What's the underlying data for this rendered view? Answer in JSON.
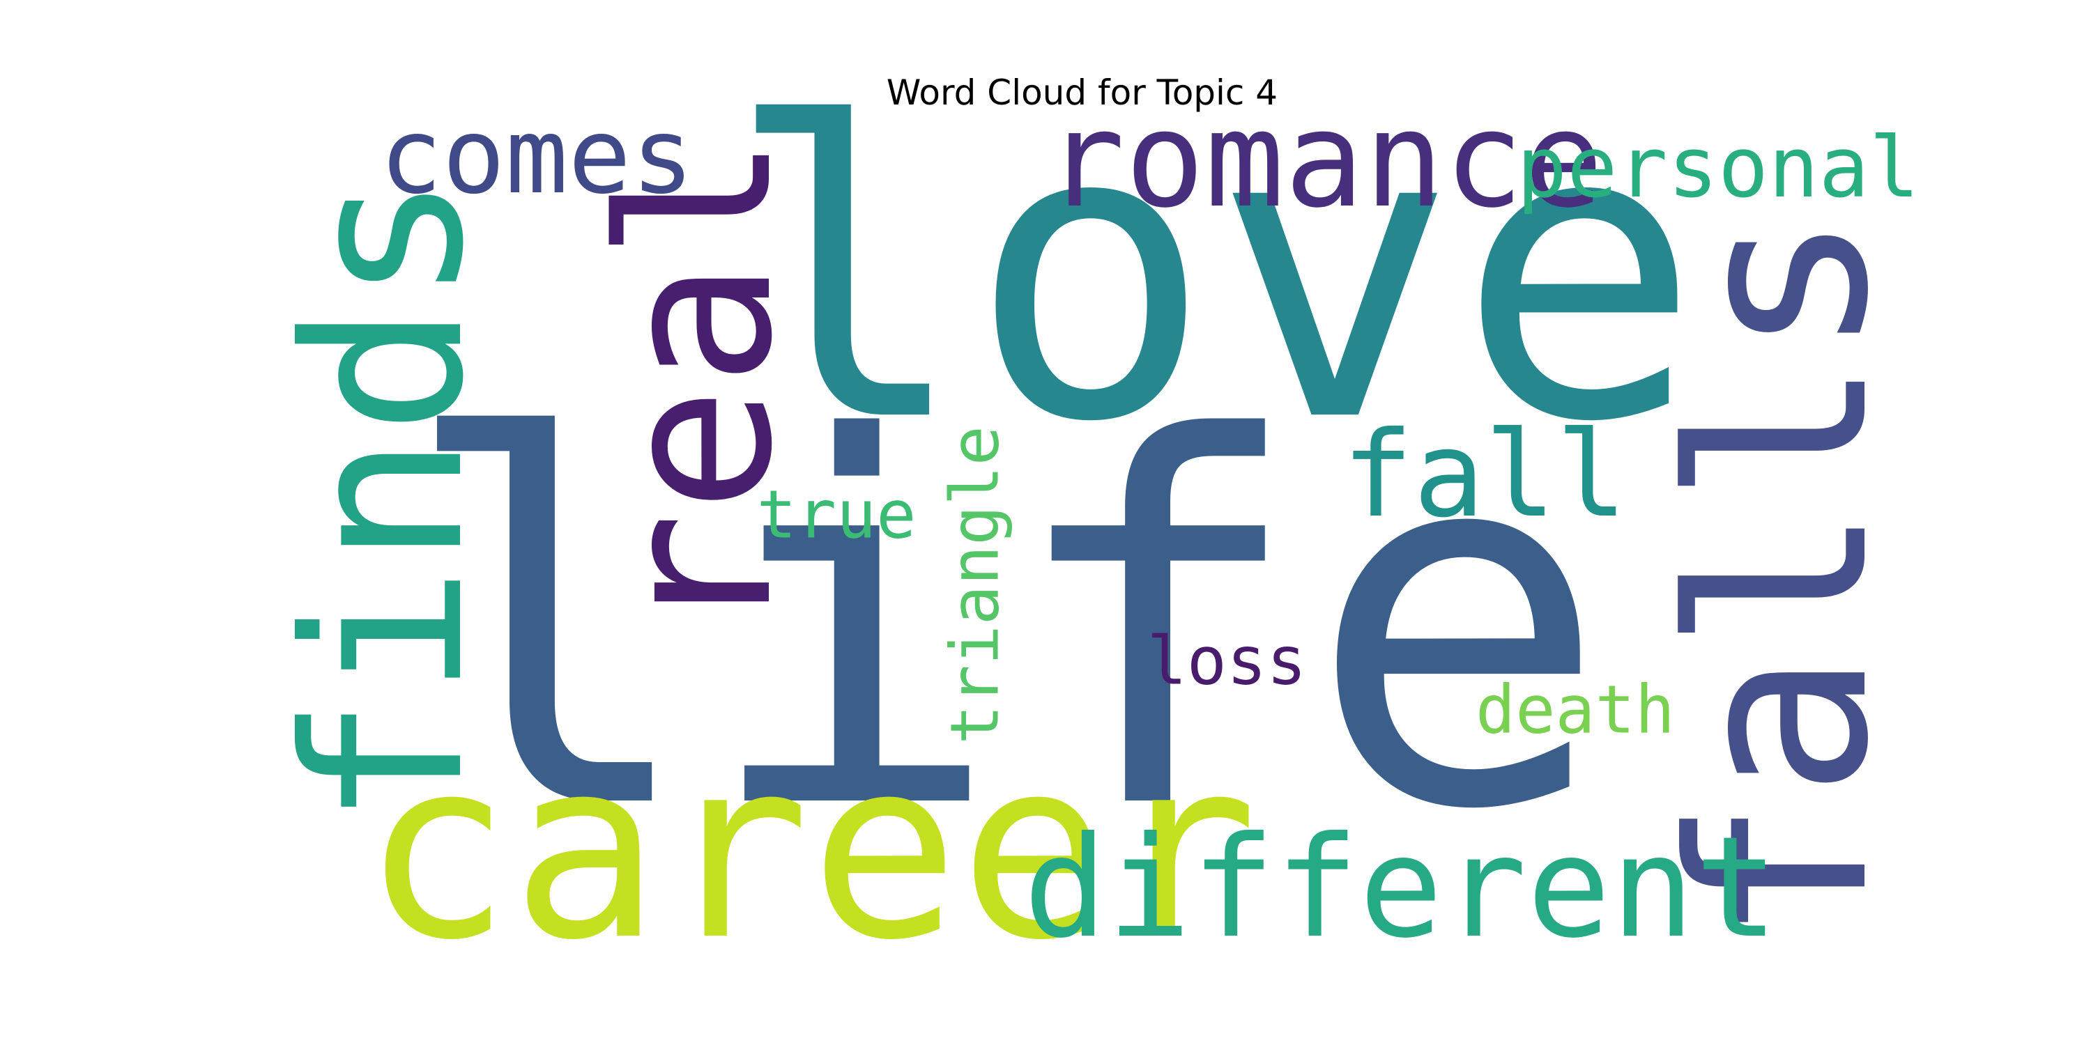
{
  "title": "Word Cloud for Topic 4",
  "words": [
    {
      "text": "life",
      "color": "#3b5f8a",
      "rotated": false
    },
    {
      "text": "love",
      "color": "#26888e",
      "rotated": false
    },
    {
      "text": "career",
      "color": "#c5e021",
      "rotated": false
    },
    {
      "text": "finds",
      "color": "#22a286",
      "rotated": true
    },
    {
      "text": "falls",
      "color": "#46508a",
      "rotated": true
    },
    {
      "text": "real",
      "color": "#481e6f",
      "rotated": true
    },
    {
      "text": "different",
      "color": "#26a985",
      "rotated": false
    },
    {
      "text": "romance",
      "color": "#472f7d",
      "rotated": false
    },
    {
      "text": "comes",
      "color": "#404a88",
      "rotated": false
    },
    {
      "text": "fall",
      "color": "#21918c",
      "rotated": false
    },
    {
      "text": "personal",
      "color": "#29af7f",
      "rotated": false
    },
    {
      "text": "true",
      "color": "#3cbb75",
      "rotated": false
    },
    {
      "text": "triangle",
      "color": "#55c667",
      "rotated": true
    },
    {
      "text": "loss",
      "color": "#481b6d",
      "rotated": false
    },
    {
      "text": "death",
      "color": "#7ad151",
      "rotated": false
    }
  ]
}
